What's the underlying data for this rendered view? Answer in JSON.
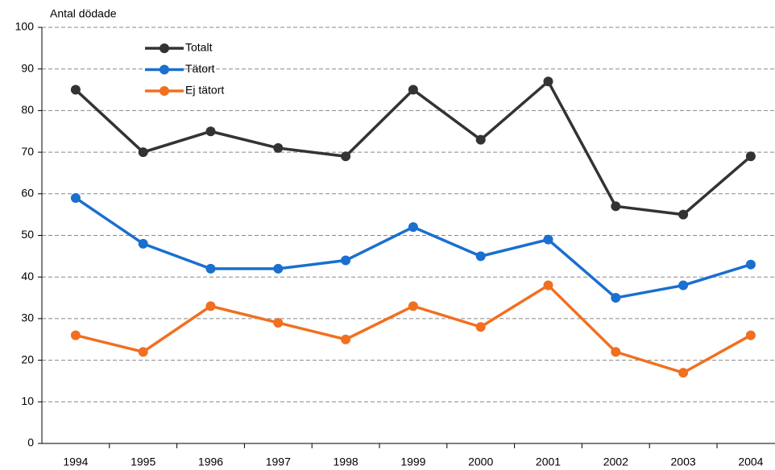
{
  "chart_data": {
    "type": "line",
    "y_label": "Antal dödade",
    "categories": [
      "1994",
      "1995",
      "1996",
      "1997",
      "1998",
      "1999",
      "2000",
      "2001",
      "2002",
      "2003",
      "2004"
    ],
    "series": [
      {
        "name": "Totalt",
        "color": "#333333",
        "values": [
          85,
          70,
          75,
          71,
          69,
          85,
          73,
          87,
          57,
          55,
          69
        ]
      },
      {
        "name": "Tätort",
        "color": "#1a6fcf",
        "values": [
          59,
          48,
          42,
          42,
          44,
          52,
          45,
          49,
          35,
          38,
          43
        ]
      },
      {
        "name": "Ej tätort",
        "color": "#f07020",
        "values": [
          26,
          22,
          33,
          29,
          25,
          33,
          28,
          38,
          22,
          17,
          26
        ]
      }
    ],
    "ylim": [
      0,
      100
    ],
    "yticks": [
      0,
      10,
      20,
      30,
      40,
      50,
      60,
      70,
      80,
      90,
      100
    ],
    "grid": true,
    "legend": "upper left"
  }
}
